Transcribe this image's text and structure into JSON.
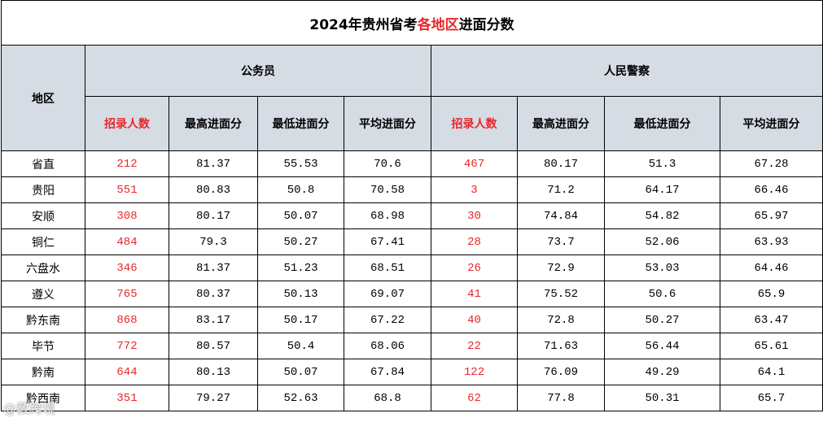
{
  "title": {
    "prefix": "2024年贵州省考",
    "highlight": "各地区",
    "suffix": "进面分数"
  },
  "headers": {
    "region": "地区",
    "group1": "公务员",
    "group2": "人民警察",
    "sub": [
      "招录人数",
      "最高进面分",
      "最低进面分",
      "平均进面分"
    ]
  },
  "rows": [
    {
      "region": "省直",
      "gwy": [
        "212",
        "81.37",
        "55.53",
        "70.6"
      ],
      "jc": [
        "467",
        "80.17",
        "51.3",
        "67.28"
      ]
    },
    {
      "region": "贵阳",
      "gwy": [
        "551",
        "80.83",
        "50.8",
        "70.58"
      ],
      "jc": [
        "3",
        "71.2",
        "64.17",
        "66.46"
      ]
    },
    {
      "region": "安顺",
      "gwy": [
        "308",
        "80.17",
        "50.07",
        "68.98"
      ],
      "jc": [
        "30",
        "74.84",
        "54.82",
        "65.97"
      ]
    },
    {
      "region": "铜仁",
      "gwy": [
        "484",
        "79.3",
        "50.27",
        "67.41"
      ],
      "jc": [
        "28",
        "73.7",
        "52.06",
        "63.93"
      ]
    },
    {
      "region": "六盘水",
      "gwy": [
        "346",
        "81.37",
        "51.23",
        "68.51"
      ],
      "jc": [
        "26",
        "72.9",
        "53.03",
        "64.46"
      ]
    },
    {
      "region": "遵义",
      "gwy": [
        "765",
        "80.37",
        "50.13",
        "69.07"
      ],
      "jc": [
        "41",
        "75.52",
        "50.6",
        "65.9"
      ]
    },
    {
      "region": "黔东南",
      "gwy": [
        "868",
        "83.17",
        "50.17",
        "67.22"
      ],
      "jc": [
        "40",
        "72.8",
        "50.27",
        "63.47"
      ]
    },
    {
      "region": "毕节",
      "gwy": [
        "772",
        "80.57",
        "50.4",
        "68.06"
      ],
      "jc": [
        "22",
        "71.63",
        "56.44",
        "65.61"
      ]
    },
    {
      "region": "黔南",
      "gwy": [
        "644",
        "80.13",
        "50.07",
        "67.84"
      ],
      "jc": [
        "122",
        "76.09",
        "49.29",
        "64.1"
      ]
    },
    {
      "region": "黔西南",
      "gwy": [
        "351",
        "79.27",
        "52.63",
        "68.8"
      ],
      "jc": [
        "62",
        "77.8",
        "50.31",
        "65.7"
      ]
    }
  ],
  "watermark": "@教跨境",
  "colors": {
    "accent": "#e8262b",
    "header_bg": "#d6dce4"
  }
}
